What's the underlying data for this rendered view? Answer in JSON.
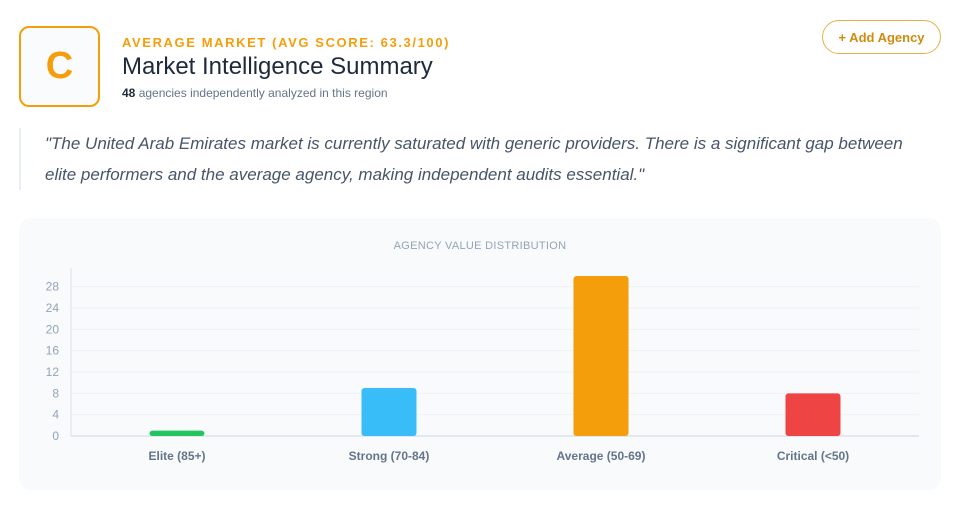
{
  "header": {
    "grade": "C",
    "kicker": "AVERAGE MARKET (AVG SCORE: 63.3/100)",
    "title": "Market Intelligence Summary",
    "agency_count": "48",
    "agency_count_suffix": " agencies independently analyzed in this region",
    "add_button_label": "+ Add Agency"
  },
  "quote": "\"The United Arab Emirates market is currently saturated with generic providers. There is a significant gap between elite performers and the average agency, making independent audits essential.\"",
  "colors": {
    "accent": "#f59e0b",
    "elite": "#22c55e",
    "strong": "#38bdf8",
    "average": "#f59e0b",
    "critical": "#ef4444"
  },
  "chart_data": {
    "type": "bar",
    "title": "AGENCY VALUE DISTRIBUTION",
    "categories": [
      "Elite (85+)",
      "Strong (70-84)",
      "Average (50-69)",
      "Critical (<50)"
    ],
    "values": [
      1,
      9,
      30,
      8
    ],
    "bar_colors": [
      "#22c55e",
      "#38bdf8",
      "#f59e0b",
      "#ef4444"
    ],
    "yticks": [
      0,
      4,
      8,
      12,
      16,
      20,
      24,
      28
    ],
    "ylim": [
      0,
      30
    ],
    "grid": true,
    "legend": "none"
  }
}
